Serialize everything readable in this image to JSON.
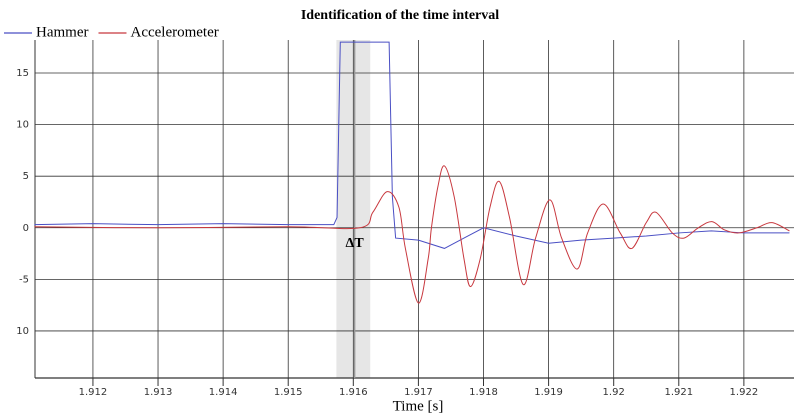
{
  "chart_data": {
    "type": "line",
    "title": "Identification of the time interval",
    "x_label": "Time [s]",
    "xlim": [
      1.91111,
      1.92277
    ],
    "ylim": [
      -14.56,
      18.2
    ],
    "xticks": [
      1.912,
      1.913,
      1.914,
      1.915,
      1.916,
      1.917,
      1.918,
      1.919,
      1.92,
      1.921,
      1.922
    ],
    "yticks": [
      15,
      10,
      5,
      0,
      -5,
      {
        "value": -10,
        "label": "10"
      }
    ],
    "grid": true,
    "legend": "top-left",
    "annotation": {
      "label": "ΔT",
      "x": 1.91602,
      "band": [
        1.91574,
        1.91626
      ]
    },
    "series": [
      {
        "name": "Hammer",
        "color": "#4a4fc4",
        "x": [
          1.9111,
          1.912,
          1.913,
          1.914,
          1.915,
          1.9157,
          1.91575,
          1.9158,
          1.91655,
          1.9166,
          1.91665,
          1.917,
          1.9174,
          1.9177,
          1.918,
          1.9185,
          1.919,
          1.9195,
          1.92,
          1.9205,
          1.921,
          1.9215,
          1.922,
          1.9227
        ],
        "values": [
          0.3,
          0.4,
          0.3,
          0.4,
          0.3,
          0.3,
          1,
          18,
          18,
          3,
          -1,
          -1.2,
          -2,
          -1,
          0,
          -0.8,
          -1.5,
          -1.2,
          -1,
          -0.8,
          -0.5,
          -0.3,
          -0.5,
          -0.5
        ]
      },
      {
        "name": "Accelerometer",
        "color": "#c8383e",
        "x": [
          1.9111,
          1.913,
          1.915,
          1.9161,
          1.9163,
          1.91652,
          1.9167,
          1.9168,
          1.917,
          1.91715,
          1.9172,
          1.9173,
          1.9174,
          1.91755,
          1.9177,
          1.9178,
          1.91795,
          1.9181,
          1.91824,
          1.9184,
          1.91861,
          1.9188,
          1.91902,
          1.9192,
          1.91944,
          1.9196,
          1.91984,
          1.9201,
          1.92028,
          1.9205,
          1.92065,
          1.9209,
          1.92108,
          1.9213,
          1.92151,
          1.9217,
          1.92192,
          1.9222,
          1.92243,
          1.9227
        ],
        "values": [
          0.1,
          0,
          0.1,
          0,
          1.5,
          3.5,
          2,
          -2,
          -7.3,
          -3,
          0,
          4,
          6,
          3,
          -3,
          -5.7,
          -3,
          2,
          4.5,
          1,
          -5.5,
          -1,
          2.7,
          -1,
          -4,
          -0.5,
          2.3,
          -0.5,
          -2,
          0.5,
          1.5,
          -0.5,
          -1,
          0,
          0.6,
          -0.2,
          -0.5,
          0,
          0.5,
          -0.3
        ]
      }
    ]
  }
}
